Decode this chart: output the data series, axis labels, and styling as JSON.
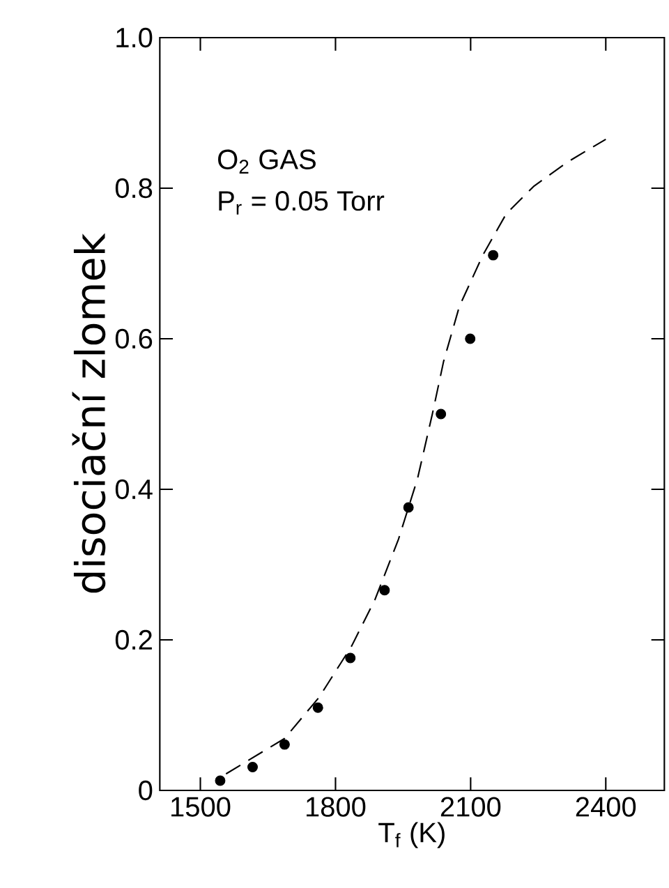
{
  "chart_data": {
    "type": "scatter",
    "xlabel": "T$_{f}$ (K)",
    "ylabel": "disociační zlomek",
    "annotations": [
      "O$_{2}$ GAS",
      "P$_{r}$ = 0.05 Torr"
    ],
    "xlim": [
      1410,
      2530
    ],
    "ylim": [
      0,
      1
    ],
    "xticks": [
      1500,
      1800,
      2100,
      2400
    ],
    "yticks": [
      {
        "value": 0,
        "label": "0"
      },
      0.2,
      0.4,
      0.6,
      0.8,
      {
        "value": 1,
        "label": "1.0"
      }
    ],
    "series": [
      {
        "marker": "circle",
        "color": "#000000",
        "x": [
          1544,
          1616,
          1687,
          1761,
          1833,
          1909,
          1962,
          2034,
          2099,
          2150
        ],
        "values": [
          0.013,
          0.031,
          0.061,
          0.11,
          0.176,
          0.266,
          0.376,
          0.5,
          0.6,
          0.711
        ]
      },
      {
        "type": "line",
        "line_style": "dashed",
        "marker": "none",
        "color": "#000000",
        "x": [
          1557,
          1687,
          1764,
          1836,
          1888,
          1940,
          1982,
          2015,
          2040,
          2075,
          2127,
          2179,
          2241,
          2313,
          2400
        ],
        "values": [
          0.022,
          0.069,
          0.124,
          0.192,
          0.254,
          0.334,
          0.414,
          0.5,
          0.57,
          0.643,
          0.711,
          0.766,
          0.803,
          0.834,
          0.865
        ]
      }
    ]
  }
}
